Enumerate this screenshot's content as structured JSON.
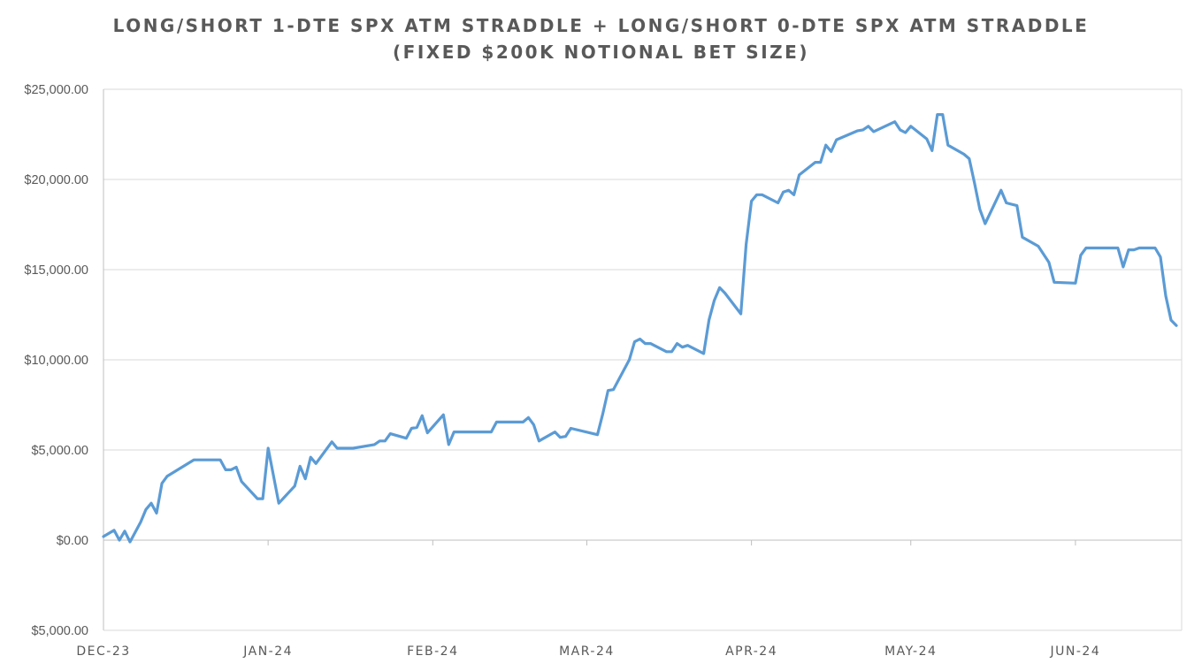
{
  "chart_data": {
    "type": "line",
    "title": "LONG/SHORT 1-DTE SPX ATM STRADDLE + LONG/SHORT 0-DTE SPX ATM STRADDLE",
    "subtitle": "(FIXED $200K NOTIONAL BET SIZE)",
    "xlabel": "",
    "ylabel": "",
    "ylim": [
      -5000,
      25000
    ],
    "y_ticks": [
      25000,
      20000,
      15000,
      10000,
      5000,
      0,
      -5000
    ],
    "y_tick_labels": [
      "$25,000.00",
      "$20,000.00",
      "$15,000.00",
      "$10,000.00",
      "$5,000.00",
      "$0.00",
      "$5,000.00"
    ],
    "negative_tick_color": "#c00000",
    "x_tick_labels": [
      "DEC-23",
      "JAN-24",
      "FEB-24",
      "MAR-24",
      "APR-24",
      "MAY-24",
      "JUN-24"
    ],
    "x_tick_dates": [
      "2023-12-01",
      "2024-01-01",
      "2024-02-01",
      "2024-03-01",
      "2024-04-01",
      "2024-05-01",
      "2024-06-01"
    ],
    "x_range": [
      "2023-12-01",
      "2024-06-21"
    ],
    "grid": "horizontal",
    "line_color": "#5b9bd5",
    "series": [
      {
        "values": [
          {
            "x": "2023-12-01",
            "y": 200
          },
          {
            "x": "2023-12-03",
            "y": 550
          },
          {
            "x": "2023-12-04",
            "y": 0
          },
          {
            "x": "2023-12-05",
            "y": 500
          },
          {
            "x": "2023-12-06",
            "y": -100
          },
          {
            "x": "2023-12-08",
            "y": 1000
          },
          {
            "x": "2023-12-09",
            "y": 1700
          },
          {
            "x": "2023-12-10",
            "y": 2050
          },
          {
            "x": "2023-12-11",
            "y": 1500
          },
          {
            "x": "2023-12-12",
            "y": 3150
          },
          {
            "x": "2023-12-13",
            "y": 3550
          },
          {
            "x": "2023-12-18",
            "y": 4450
          },
          {
            "x": "2023-12-23",
            "y": 4450
          },
          {
            "x": "2023-12-24",
            "y": 3900
          },
          {
            "x": "2023-12-25",
            "y": 3900
          },
          {
            "x": "2023-12-26",
            "y": 4050
          },
          {
            "x": "2023-12-27",
            "y": 3250
          },
          {
            "x": "2023-12-30",
            "y": 2300
          },
          {
            "x": "2023-12-31",
            "y": 2300
          },
          {
            "x": "2024-01-01",
            "y": 5100
          },
          {
            "x": "2024-01-03",
            "y": 2050
          },
          {
            "x": "2024-01-06",
            "y": 3000
          },
          {
            "x": "2024-01-07",
            "y": 4100
          },
          {
            "x": "2024-01-08",
            "y": 3400
          },
          {
            "x": "2024-01-09",
            "y": 4600
          },
          {
            "x": "2024-01-10",
            "y": 4250
          },
          {
            "x": "2024-01-13",
            "y": 5450
          },
          {
            "x": "2024-01-14",
            "y": 5100
          },
          {
            "x": "2024-01-17",
            "y": 5100
          },
          {
            "x": "2024-01-21",
            "y": 5300
          },
          {
            "x": "2024-01-22",
            "y": 5500
          },
          {
            "x": "2024-01-23",
            "y": 5500
          },
          {
            "x": "2024-01-24",
            "y": 5900
          },
          {
            "x": "2024-01-27",
            "y": 5650
          },
          {
            "x": "2024-01-28",
            "y": 6200
          },
          {
            "x": "2024-01-29",
            "y": 6250
          },
          {
            "x": "2024-01-30",
            "y": 6900
          },
          {
            "x": "2024-01-31",
            "y": 5950
          },
          {
            "x": "2024-02-03",
            "y": 6950
          },
          {
            "x": "2024-02-04",
            "y": 5300
          },
          {
            "x": "2024-02-05",
            "y": 6000
          },
          {
            "x": "2024-02-12",
            "y": 6000
          },
          {
            "x": "2024-02-13",
            "y": 6550
          },
          {
            "x": "2024-02-18",
            "y": 6550
          },
          {
            "x": "2024-02-19",
            "y": 6800
          },
          {
            "x": "2024-02-20",
            "y": 6400
          },
          {
            "x": "2024-02-21",
            "y": 5500
          },
          {
            "x": "2024-02-24",
            "y": 6000
          },
          {
            "x": "2024-02-25",
            "y": 5700
          },
          {
            "x": "2024-02-26",
            "y": 5750
          },
          {
            "x": "2024-02-27",
            "y": 6200
          },
          {
            "x": "2024-03-03",
            "y": 5850
          },
          {
            "x": "2024-03-04",
            "y": 7000
          },
          {
            "x": "2024-03-05",
            "y": 8300
          },
          {
            "x": "2024-03-06",
            "y": 8350
          },
          {
            "x": "2024-03-09",
            "y": 10000
          },
          {
            "x": "2024-03-10",
            "y": 11000
          },
          {
            "x": "2024-03-11",
            "y": 11150
          },
          {
            "x": "2024-03-12",
            "y": 10900
          },
          {
            "x": "2024-03-13",
            "y": 10900
          },
          {
            "x": "2024-03-16",
            "y": 10450
          },
          {
            "x": "2024-03-17",
            "y": 10450
          },
          {
            "x": "2024-03-18",
            "y": 10900
          },
          {
            "x": "2024-03-19",
            "y": 10700
          },
          {
            "x": "2024-03-20",
            "y": 10800
          },
          {
            "x": "2024-03-23",
            "y": 10350
          },
          {
            "x": "2024-03-24",
            "y": 12200
          },
          {
            "x": "2024-03-25",
            "y": 13300
          },
          {
            "x": "2024-03-26",
            "y": 14000
          },
          {
            "x": "2024-03-27",
            "y": 13700
          },
          {
            "x": "2024-03-30",
            "y": 12550
          },
          {
            "x": "2024-03-31",
            "y": 16400
          },
          {
            "x": "2024-04-01",
            "y": 18800
          },
          {
            "x": "2024-04-02",
            "y": 19150
          },
          {
            "x": "2024-04-03",
            "y": 19150
          },
          {
            "x": "2024-04-06",
            "y": 18700
          },
          {
            "x": "2024-04-07",
            "y": 19300
          },
          {
            "x": "2024-04-08",
            "y": 19400
          },
          {
            "x": "2024-04-09",
            "y": 19150
          },
          {
            "x": "2024-04-10",
            "y": 20250
          },
          {
            "x": "2024-04-13",
            "y": 20950
          },
          {
            "x": "2024-04-14",
            "y": 20950
          },
          {
            "x": "2024-04-15",
            "y": 21900
          },
          {
            "x": "2024-04-16",
            "y": 21550
          },
          {
            "x": "2024-04-17",
            "y": 22200
          },
          {
            "x": "2024-04-21",
            "y": 22700
          },
          {
            "x": "2024-04-22",
            "y": 22750
          },
          {
            "x": "2024-04-23",
            "y": 22950
          },
          {
            "x": "2024-04-24",
            "y": 22650
          },
          {
            "x": "2024-04-28",
            "y": 23200
          },
          {
            "x": "2024-04-29",
            "y": 22750
          },
          {
            "x": "2024-04-30",
            "y": 22600
          },
          {
            "x": "2024-05-01",
            "y": 22950
          },
          {
            "x": "2024-05-04",
            "y": 22250
          },
          {
            "x": "2024-05-05",
            "y": 21600
          },
          {
            "x": "2024-05-06",
            "y": 23600
          },
          {
            "x": "2024-05-07",
            "y": 23600
          },
          {
            "x": "2024-05-08",
            "y": 21900
          },
          {
            "x": "2024-05-11",
            "y": 21400
          },
          {
            "x": "2024-05-12",
            "y": 21150
          },
          {
            "x": "2024-05-13",
            "y": 19800
          },
          {
            "x": "2024-05-14",
            "y": 18350
          },
          {
            "x": "2024-05-15",
            "y": 17550
          },
          {
            "x": "2024-05-18",
            "y": 19400
          },
          {
            "x": "2024-05-19",
            "y": 18700
          },
          {
            "x": "2024-05-21",
            "y": 18550
          },
          {
            "x": "2024-05-22",
            "y": 16800
          },
          {
            "x": "2024-05-25",
            "y": 16300
          },
          {
            "x": "2024-05-27",
            "y": 15400
          },
          {
            "x": "2024-05-28",
            "y": 14300
          },
          {
            "x": "2024-06-01",
            "y": 14250
          },
          {
            "x": "2024-06-02",
            "y": 15800
          },
          {
            "x": "2024-06-03",
            "y": 16200
          },
          {
            "x": "2024-06-09",
            "y": 16200
          },
          {
            "x": "2024-06-10",
            "y": 15150
          },
          {
            "x": "2024-06-11",
            "y": 16100
          },
          {
            "x": "2024-06-12",
            "y": 16100
          },
          {
            "x": "2024-06-13",
            "y": 16200
          },
          {
            "x": "2024-06-16",
            "y": 16200
          },
          {
            "x": "2024-06-17",
            "y": 15700
          },
          {
            "x": "2024-06-18",
            "y": 13550
          },
          {
            "x": "2024-06-19",
            "y": 12200
          },
          {
            "x": "2024-06-20",
            "y": 11900
          }
        ]
      }
    ]
  }
}
